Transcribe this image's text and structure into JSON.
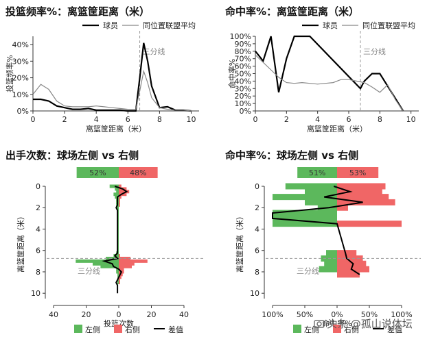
{
  "colors": {
    "player": "#000000",
    "league": "#888888",
    "left": "#5cb85c",
    "right": "#f06666",
    "threept": "#999999"
  },
  "watermark": "头条 @孤山说体坛",
  "icons": {
    "watermark_icon": "camera-icon"
  },
  "chart_data": [
    {
      "type": "line",
      "title": "投篮频率%：离篮筐距离（米）",
      "xlabel": "离篮筐距离（米）",
      "ylabel": "投篮频率%",
      "xlim": [
        0,
        10.5
      ],
      "ylim": [
        0,
        45
      ],
      "xticks": [
        "0",
        "2",
        "4",
        "6",
        "8",
        "10"
      ],
      "yticks": [
        "0%",
        "10%",
        "20%",
        "30%",
        "40%"
      ],
      "threept_label": "三分线",
      "threept_x": 6.75,
      "legend": {
        "player": "球员",
        "league": "同位置联盟平均"
      },
      "series": [
        {
          "name": "球员",
          "x": [
            0,
            0.5,
            1,
            1.5,
            2,
            2.5,
            3,
            3.5,
            4,
            4.5,
            5,
            5.5,
            6,
            6.5,
            6.75,
            7,
            7.25,
            7.5,
            8,
            8.5,
            9,
            9.5,
            10
          ],
          "y": [
            7,
            7,
            6,
            3,
            2,
            1,
            1,
            1.5,
            0.5,
            0.5,
            0.5,
            0.5,
            0,
            0,
            20,
            41,
            30,
            15,
            2,
            2.5,
            0.5,
            0.5,
            0
          ]
        },
        {
          "name": "同位置联盟平均",
          "x": [
            0,
            0.5,
            1,
            1.5,
            2,
            2.5,
            3,
            3.5,
            4,
            4.5,
            5,
            5.5,
            6,
            6.5,
            6.75,
            7,
            7.25,
            7.5,
            8,
            8.5,
            9,
            9.5,
            10
          ],
          "y": [
            10,
            16,
            13,
            6,
            3,
            2.5,
            2.5,
            2.5,
            3,
            2.5,
            2,
            1.5,
            1,
            1,
            12,
            24,
            17,
            8,
            2,
            1,
            0.5,
            0.5,
            0
          ]
        }
      ]
    },
    {
      "type": "line",
      "title": "命中率%：离篮筐距离（米）",
      "xlabel": "离篮筐距离（米）",
      "ylabel": "命中率%",
      "xlim": [
        0,
        10.5
      ],
      "ylim": [
        0,
        100
      ],
      "xticks": [
        "0",
        "2",
        "4",
        "6",
        "8",
        "10"
      ],
      "yticks": [
        "0%",
        "10%",
        "20%",
        "30%",
        "40%",
        "50%",
        "60%",
        "70%",
        "80%",
        "90%",
        "100%"
      ],
      "threept_label": "三分线",
      "threept_x": 6.75,
      "legend": {
        "player": "球员",
        "league": "同位置联盟平均"
      },
      "series": [
        {
          "name": "球员",
          "x": [
            0,
            0.5,
            1,
            1.5,
            2,
            2.5,
            3,
            3.5,
            6.75,
            7,
            7.5,
            8,
            9.5
          ],
          "y": [
            80,
            67,
            100,
            25,
            70,
            100,
            100,
            100,
            30,
            40,
            50,
            50,
            0
          ]
        },
        {
          "name": "同位置联盟平均",
          "x": [
            0,
            0.5,
            1,
            1.5,
            2,
            2.5,
            3,
            3.5,
            4,
            4.5,
            5,
            5.5,
            6,
            6.5,
            7,
            7.5,
            8,
            8.5,
            9,
            9.5
          ],
          "y": [
            75,
            65,
            55,
            45,
            38,
            37,
            38,
            37,
            36,
            37,
            38,
            42,
            42,
            40,
            38,
            32,
            25,
            35,
            15,
            0
          ]
        }
      ]
    },
    {
      "type": "bar",
      "title": "出手次数：球场左侧 vs 右侧",
      "xlabel": "投篮次数",
      "ylabel": "离篮筐距离（米）",
      "xlim": [
        -50,
        50
      ],
      "ylim": [
        0,
        10.5
      ],
      "xticks": [
        "40",
        "20",
        "0",
        "20",
        "40"
      ],
      "yticks": [
        "0",
        "2",
        "4",
        "6",
        "8",
        "10"
      ],
      "threept_label": "三分线",
      "threept_y": 6.75,
      "summary": {
        "left_pct": "52%",
        "right_pct": "48%",
        "left_share": 0.52,
        "right_share": 0.48
      },
      "legend": {
        "left": "左侧",
        "right": "右侧",
        "diff": "差值"
      },
      "distance": [
        0,
        0.25,
        0.5,
        0.75,
        1,
        1.25,
        1.5,
        1.75,
        2,
        2.25,
        2.5,
        2.75,
        3,
        3.25,
        3.5,
        3.75,
        4,
        4.25,
        4.5,
        4.75,
        5,
        5.25,
        5.5,
        5.75,
        6,
        6.25,
        6.5,
        6.75,
        7,
        7.25,
        7.5,
        7.75,
        8,
        8.25,
        8.5,
        8.75,
        9,
        9.25,
        9.5,
        9.75,
        10
      ],
      "left": [
        -7,
        -3,
        -2,
        -4,
        -3,
        -2,
        -2,
        -2,
        -2,
        -1,
        -1,
        -1,
        -1,
        -1,
        -1,
        -1,
        -1,
        -1,
        -1,
        -1,
        -1,
        -1,
        -1,
        -1,
        -1,
        -2,
        -4,
        -10,
        -33,
        -20,
        -14,
        -2,
        -2,
        -1,
        -1,
        -1,
        -1,
        0,
        0,
        0,
        0
      ],
      "right": [
        2,
        6,
        8,
        6,
        2,
        1,
        1,
        1,
        0,
        0,
        0,
        0,
        0,
        0,
        0,
        0,
        0,
        0,
        0,
        0,
        0,
        0,
        0,
        0,
        0,
        0,
        1,
        9,
        22,
        12,
        10,
        4,
        4,
        3,
        2,
        1,
        1,
        0,
        0,
        0,
        0
      ],
      "diff": [
        -3,
        3,
        6,
        2,
        -1,
        -1,
        -1,
        -1,
        -2,
        -1,
        -1,
        -1,
        -1,
        -1,
        -1,
        -1,
        -1,
        -1,
        -1,
        -1,
        -1,
        -1,
        -1,
        -1,
        -1,
        -1,
        -3,
        -1,
        -11,
        -5,
        -4,
        0,
        2,
        1,
        0,
        -1,
        -2,
        -1,
        -1,
        -1,
        -1
      ]
    },
    {
      "type": "bar",
      "title": "命中率%：球场左侧 vs 右侧",
      "xlabel": "命中率%",
      "ylabel": "离篮筐距离（米）",
      "xlim": [
        -100,
        100
      ],
      "ylim": [
        0,
        10.5
      ],
      "xticks": [
        "100%",
        "50%",
        "0%",
        "50%",
        "100%"
      ],
      "yticks": [
        "0",
        "2",
        "4",
        "6",
        "8",
        "10"
      ],
      "threept_label": "三分线",
      "threept_y": 6.75,
      "summary": {
        "left_pct": "51%",
        "right_pct": "53%",
        "left_share": 0.49,
        "right_share": 0.51
      },
      "legend": {
        "left": "左侧",
        "right": "右侧",
        "diff": "差值"
      },
      "distance": [
        0,
        0.5,
        1,
        1.5,
        2,
        2.5,
        3,
        3.5,
        6.25,
        6.75,
        7.25,
        7.75,
        8.25
      ],
      "left": [
        -80,
        -50,
        -100,
        -50,
        -30,
        -100,
        -100,
        -100,
        -17,
        -25,
        -20,
        -28,
        0
      ],
      "right": [
        75,
        70,
        80,
        90,
        17,
        0,
        0,
        100,
        30,
        40,
        45,
        50,
        35
      ],
      "diff": [
        -5,
        20,
        -20,
        40,
        -13,
        -100,
        -100,
        0,
        13,
        15,
        25,
        22,
        35
      ]
    }
  ]
}
